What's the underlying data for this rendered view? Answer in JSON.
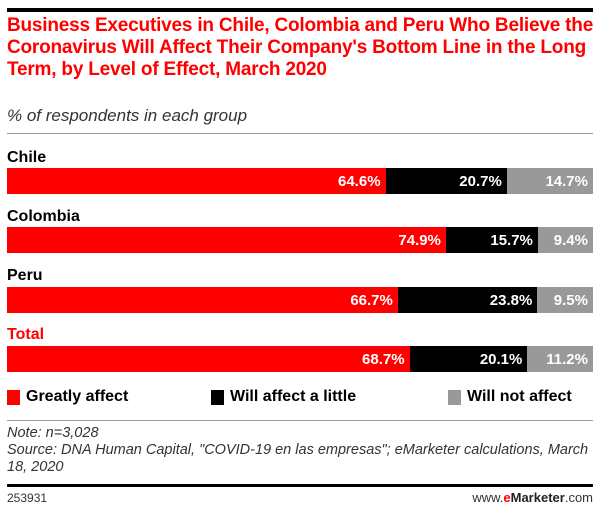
{
  "chart_data": {
    "type": "bar",
    "orientation": "horizontal",
    "stacked": true,
    "title": "Business Executives in Chile, Colombia and Peru Who Believe the Coronavirus Will Affect Their Company's Bottom Line in the Long Term, by Level of Effect, March 2020",
    "subtitle": "% of respondents in each group",
    "categories": [
      "Chile",
      "Colombia",
      "Peru",
      "Total"
    ],
    "series": [
      {
        "name": "Greatly affect",
        "color": "#ff0000",
        "values": [
          64.6,
          74.9,
          66.7,
          68.7
        ],
        "labels": [
          "64.6%",
          "74.9%",
          "66.7%",
          "68.7%"
        ]
      },
      {
        "name": "Will affect a little",
        "color": "#000000",
        "values": [
          20.7,
          15.7,
          23.8,
          20.1
        ],
        "labels": [
          "20.7%",
          "15.7%",
          "23.8%",
          "20.1%"
        ]
      },
      {
        "name": "Will not affect",
        "color": "#999999",
        "values": [
          14.7,
          9.4,
          9.5,
          11.2
        ],
        "labels": [
          "14.7%",
          "9.4%",
          "9.5%",
          "11.2%"
        ]
      }
    ],
    "xlim": [
      0,
      100
    ],
    "grid": false,
    "legend": "bottom",
    "highlight_category": "Total",
    "highlight_color": "#ff0000"
  },
  "notes": {
    "note": "Note: n=3,028",
    "source": "Source: DNA Human Capital, \"COVID-19 en las empresas\"; eMarketer calculations, March 18, 2020"
  },
  "footer": {
    "chart_id": "253931",
    "brand_prefix": "www.",
    "brand_e": "e",
    "brand_marketer": "Marketer",
    "brand_suffix": ".com"
  }
}
